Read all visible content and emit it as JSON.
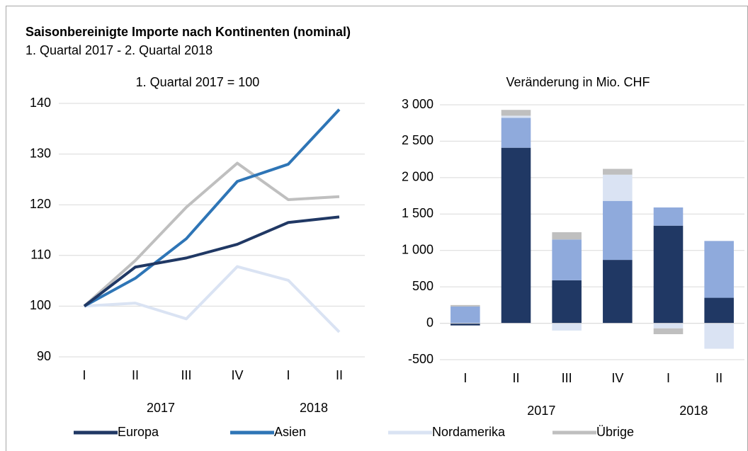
{
  "title": "Saisonbereinigte Importe nach Kontinenten (nominal)",
  "subtitle": "1. Quartal 2017 - 2. Quartal 2018",
  "chart_data": [
    {
      "type": "line",
      "title": "1. Quartal 2017 = 100",
      "categories": [
        "I",
        "II",
        "III",
        "IV",
        "I",
        "II"
      ],
      "year_labels": [
        "2017",
        "2018"
      ],
      "ylim": [
        90,
        140
      ],
      "yticks": [
        90,
        100,
        110,
        120,
        130,
        140
      ],
      "grid": true,
      "series": [
        {
          "name": "Europa",
          "color": "#203864",
          "values": [
            100,
            107.7,
            109.5,
            112.2,
            116.5,
            117.6
          ]
        },
        {
          "name": "Asien",
          "color": "#2e75b6",
          "values": [
            100,
            105.5,
            113.3,
            124.6,
            128,
            138.8
          ]
        },
        {
          "name": "Nordamerika",
          "color": "#dae3f3",
          "values": [
            100,
            100.6,
            97.5,
            107.8,
            105.1,
            94.9
          ]
        },
        {
          "name": "Übrige",
          "color": "#bfbfbf",
          "values": [
            100,
            109,
            119.5,
            128.2,
            121,
            121.6
          ]
        }
      ]
    },
    {
      "type": "stacked_bar",
      "title": "Veränderung in Mio. CHF",
      "categories": [
        "I",
        "II",
        "III",
        "IV",
        "I",
        "II"
      ],
      "year_labels": [
        "2017",
        "2018"
      ],
      "ylim": [
        -500,
        3000
      ],
      "yticks": [
        -500,
        0,
        500,
        {
          "value": 1000,
          "label": "1 000"
        },
        {
          "value": 1500,
          "label": "1 500"
        },
        {
          "value": 2000,
          "label": "2 000"
        },
        {
          "value": 2500,
          "label": "2 500"
        },
        {
          "value": 3000,
          "label": "3 000"
        }
      ],
      "grid": true,
      "series": [
        {
          "name": "Europa",
          "color": "#203864",
          "values": [
            -30,
            2410,
            590,
            870,
            1340,
            350
          ]
        },
        {
          "name": "Asien",
          "color": "#8faadc",
          "values": [
            230,
            410,
            560,
            810,
            250,
            780
          ]
        },
        {
          "name": "Nordamerika",
          "color": "#dae3f3",
          "values": [
            0,
            30,
            -100,
            360,
            -70,
            -350
          ]
        },
        {
          "name": "Übrige",
          "color": "#bfbfbf",
          "values": [
            20,
            80,
            100,
            80,
            -80,
            0
          ]
        }
      ]
    }
  ]
}
